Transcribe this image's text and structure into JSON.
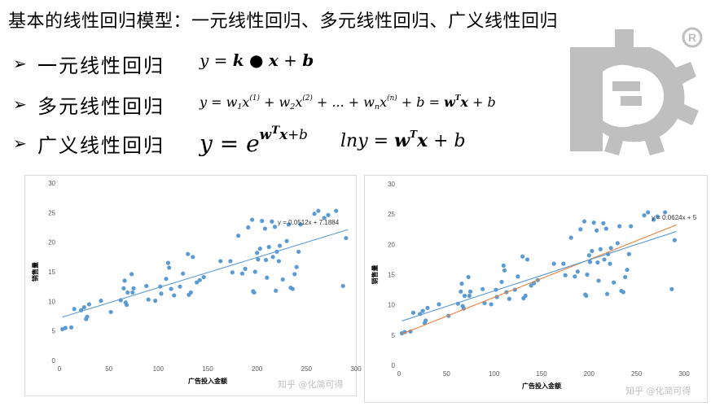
{
  "header": {
    "title": "基本的线性回归模型：一元线性回归、多元线性回归、广义线性回归"
  },
  "bullets": [
    {
      "label": "一元线性回归"
    },
    {
      "label": "多元线性回归"
    },
    {
      "label": "广义线性回归"
    }
  ],
  "icons": {
    "bullet": "arrow-right-icon",
    "logo": "gear-logo-icon",
    "registered": "registered-mark-icon"
  },
  "colors": {
    "points": "#5b9bd5",
    "trendline1": "#5b9bd5",
    "trendline2": "#ed7d31",
    "gear": "#bfbfbf"
  },
  "watermark": "知乎 @化简可得",
  "chart_data": [
    {
      "type": "scatter",
      "title": "",
      "xlabel": "广告投入金额",
      "ylabel": "销售量",
      "xlim": [
        0,
        300
      ],
      "ylim": [
        0,
        30
      ],
      "xticks": [
        0,
        50,
        100,
        150,
        200,
        250,
        300
      ],
      "yticks": [
        0,
        5,
        10,
        15,
        20,
        25,
        30
      ],
      "grid": false,
      "series": [
        {
          "points": [
            [
              3,
              5.3
            ],
            [
              6,
              5.5
            ],
            [
              12,
              5.6
            ],
            [
              15,
              8.7
            ],
            [
              22,
              8.5
            ],
            [
              25,
              9.0
            ],
            [
              27,
              7.0
            ],
            [
              28,
              7.4
            ],
            [
              30,
              9.5
            ],
            [
              42,
              10.1
            ],
            [
              52,
              8.2
            ],
            [
              62,
              10.2
            ],
            [
              65,
              12.2
            ],
            [
              66,
              13.5
            ],
            [
              67,
              9.8
            ],
            [
              68,
              9.4
            ],
            [
              69,
              11.5
            ],
            [
              73,
              14.6
            ],
            [
              74,
              11.5
            ],
            [
              75,
              12.2
            ],
            [
              88,
              12.6
            ],
            [
              90,
              10.3
            ],
            [
              97,
              10.1
            ],
            [
              102,
              12.5
            ],
            [
              103,
              11.3
            ],
            [
              108,
              13.8
            ],
            [
              110,
              16.5
            ],
            [
              111,
              15.7
            ],
            [
              113,
              12.1
            ],
            [
              116,
              11.0
            ],
            [
              122,
              12.5
            ],
            [
              125,
              14.7
            ],
            [
              130,
              18.0
            ],
            [
              131,
              11.1
            ],
            [
              133,
              11.5
            ],
            [
              135,
              17.5
            ],
            [
              139,
              13.2
            ],
            [
              142,
              13.6
            ],
            [
              146,
              14.1
            ],
            [
              163,
              16.8
            ],
            [
              173,
              16.8
            ],
            [
              175,
              14.9
            ],
            [
              181,
              21.1
            ],
            [
              185,
              14.7
            ],
            [
              188,
              15.5
            ],
            [
              191,
              22.5
            ],
            [
              195,
              23.8
            ],
            [
              196,
              11.7
            ],
            [
              197,
              11.5
            ],
            [
              198,
              15.0
            ],
            [
              200,
              18.2
            ],
            [
              201,
              17.1
            ],
            [
              203,
              18.9
            ],
            [
              205,
              23.6
            ],
            [
              208,
              22.3
            ],
            [
              209,
              17.0
            ],
            [
              210,
              14.0
            ],
            [
              212,
              19.2
            ],
            [
              215,
              23.5
            ],
            [
              216,
              17.5
            ],
            [
              218,
              22.6
            ],
            [
              219,
              11.8
            ],
            [
              220,
              18.4
            ],
            [
              222,
              16.8
            ],
            [
              223,
              19.4
            ],
            [
              226,
              13.7
            ],
            [
              230,
              20.2
            ],
            [
              232,
              23.0
            ],
            [
              234,
              12.3
            ],
            [
              236,
              12.1
            ],
            [
              238,
              14.6
            ],
            [
              240,
              15.8
            ],
            [
              242,
              18.4
            ],
            [
              244,
              23.0
            ],
            [
              258,
              24.8
            ],
            [
              262,
              25.3
            ],
            [
              268,
              24.1
            ],
            [
              272,
              24.6
            ],
            [
              280,
              25.3
            ],
            [
              287,
              12.6
            ],
            [
              290,
              20.7
            ]
          ]
        }
      ],
      "trendlines": [
        {
          "equation": "y = 0.0512x + 7.1884",
          "slope": 0.0512,
          "intercept": 7.1884
        }
      ]
    },
    {
      "type": "scatter",
      "title": "",
      "xlabel": "广告投入金额",
      "ylabel": "销售量",
      "xlim": [
        0,
        300
      ],
      "ylim": [
        0,
        30
      ],
      "xticks": [
        0,
        50,
        100,
        150,
        200,
        250,
        300
      ],
      "yticks": [
        0,
        5,
        10,
        15,
        20,
        25,
        30
      ],
      "grid": false,
      "series": [
        {
          "points": [
            [
              3,
              5.3
            ],
            [
              6,
              5.5
            ],
            [
              12,
              5.6
            ],
            [
              15,
              8.7
            ],
            [
              22,
              8.5
            ],
            [
              25,
              9.0
            ],
            [
              27,
              7.0
            ],
            [
              28,
              7.4
            ],
            [
              30,
              9.5
            ],
            [
              42,
              10.1
            ],
            [
              52,
              8.2
            ],
            [
              62,
              10.2
            ],
            [
              65,
              12.2
            ],
            [
              66,
              13.5
            ],
            [
              67,
              9.8
            ],
            [
              68,
              9.4
            ],
            [
              69,
              11.5
            ],
            [
              73,
              14.6
            ],
            [
              74,
              11.5
            ],
            [
              75,
              12.2
            ],
            [
              88,
              12.6
            ],
            [
              90,
              10.3
            ],
            [
              97,
              10.1
            ],
            [
              102,
              12.5
            ],
            [
              103,
              11.3
            ],
            [
              108,
              13.8
            ],
            [
              110,
              16.5
            ],
            [
              111,
              15.7
            ],
            [
              113,
              12.1
            ],
            [
              116,
              11.0
            ],
            [
              122,
              12.5
            ],
            [
              125,
              14.7
            ],
            [
              130,
              18.0
            ],
            [
              131,
              11.1
            ],
            [
              133,
              11.5
            ],
            [
              135,
              17.5
            ],
            [
              139,
              13.2
            ],
            [
              142,
              13.6
            ],
            [
              146,
              14.1
            ],
            [
              163,
              16.8
            ],
            [
              173,
              16.8
            ],
            [
              175,
              14.9
            ],
            [
              181,
              21.1
            ],
            [
              185,
              14.7
            ],
            [
              188,
              15.5
            ],
            [
              191,
              22.5
            ],
            [
              195,
              23.8
            ],
            [
              196,
              11.7
            ],
            [
              197,
              11.5
            ],
            [
              198,
              15.0
            ],
            [
              200,
              18.2
            ],
            [
              201,
              17.1
            ],
            [
              203,
              18.9
            ],
            [
              205,
              23.6
            ],
            [
              208,
              22.3
            ],
            [
              209,
              17.0
            ],
            [
              210,
              14.0
            ],
            [
              212,
              19.2
            ],
            [
              215,
              23.5
            ],
            [
              216,
              17.5
            ],
            [
              218,
              22.6
            ],
            [
              219,
              11.8
            ],
            [
              220,
              18.4
            ],
            [
              222,
              16.8
            ],
            [
              223,
              19.4
            ],
            [
              226,
              13.7
            ],
            [
              230,
              20.2
            ],
            [
              232,
              23.0
            ],
            [
              234,
              12.3
            ],
            [
              236,
              12.1
            ],
            [
              238,
              14.6
            ],
            [
              240,
              15.8
            ],
            [
              242,
              18.4
            ],
            [
              244,
              23.0
            ],
            [
              258,
              24.8
            ],
            [
              262,
              25.3
            ],
            [
              268,
              24.1
            ],
            [
              272,
              24.6
            ],
            [
              280,
              25.3
            ],
            [
              287,
              12.6
            ],
            [
              290,
              20.7
            ]
          ]
        }
      ],
      "trendlines": [
        {
          "equation": "y = 0.0624x + 5",
          "slope": 0.0624,
          "intercept": 5
        },
        {
          "equation": "",
          "slope": 0.0512,
          "intercept": 7.1884
        }
      ]
    }
  ]
}
